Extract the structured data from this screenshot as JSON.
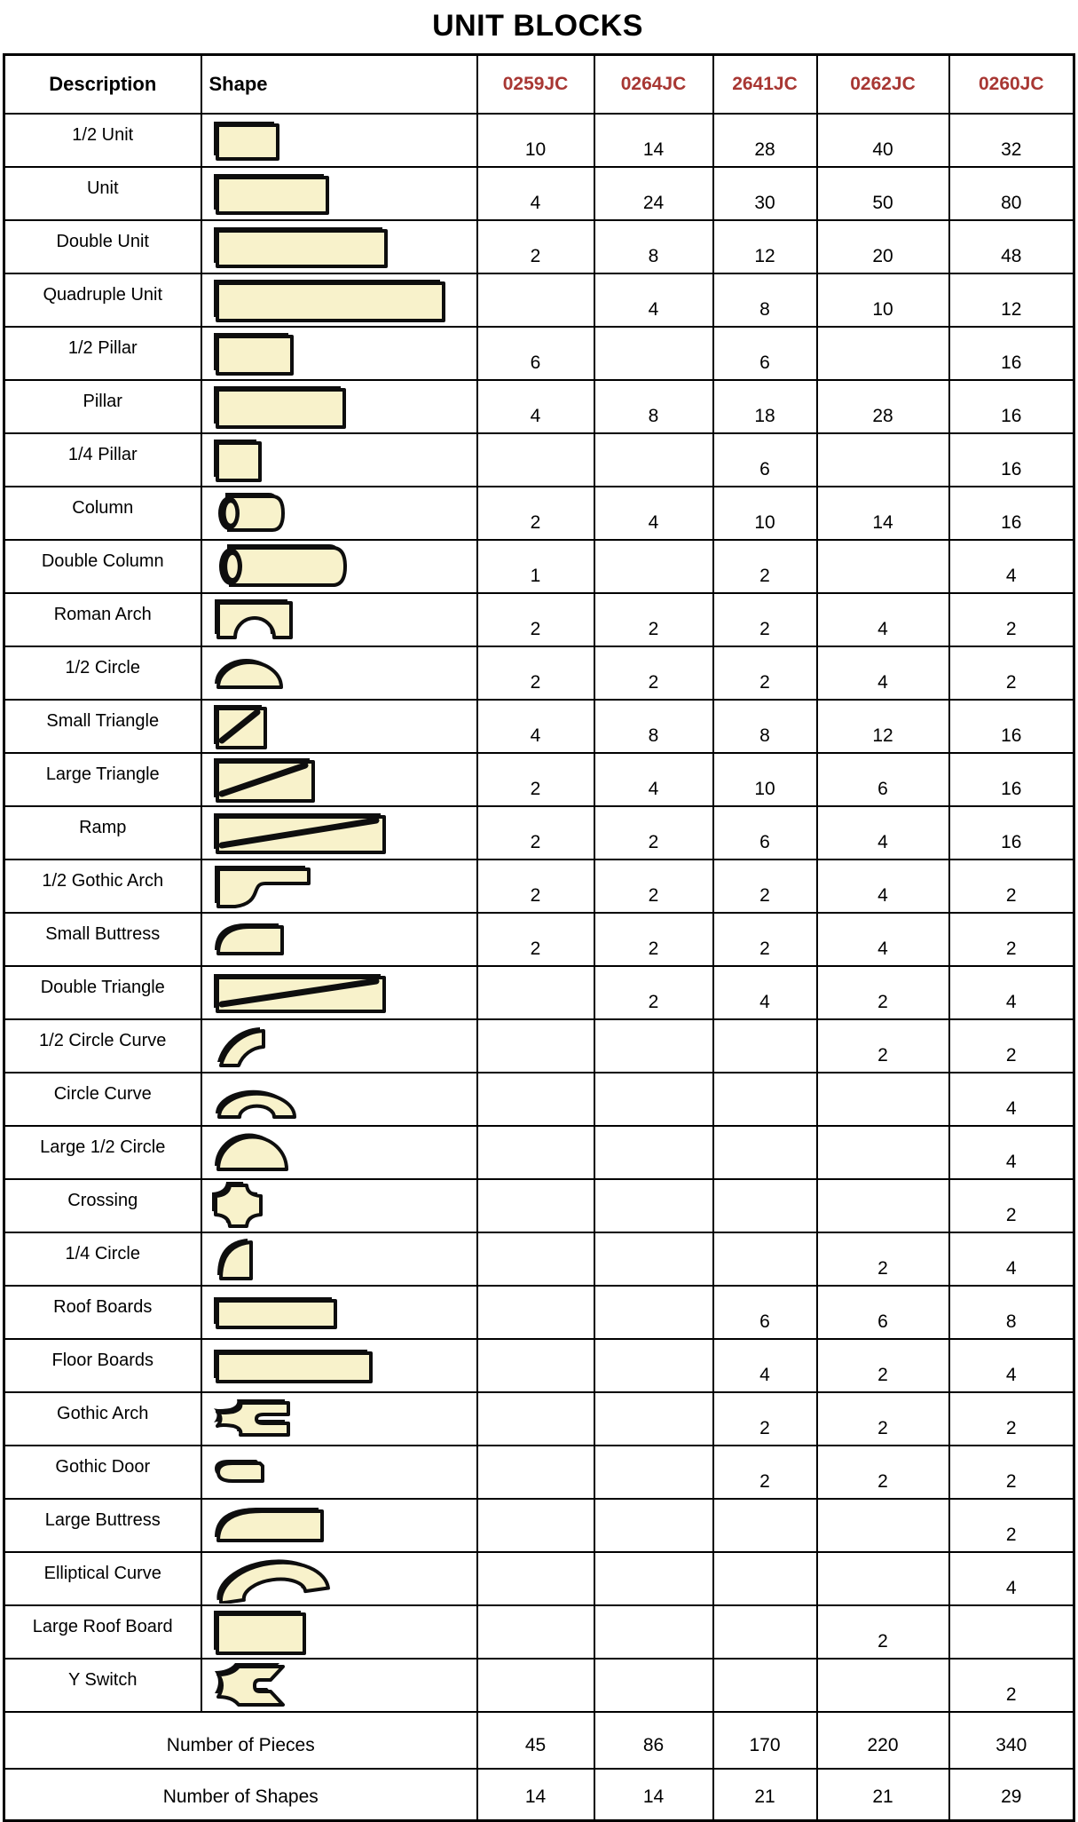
{
  "title": "UNIT BLOCKS",
  "colors": {
    "code_header_red": "#A83733",
    "block_cream": "#F8F2CB",
    "outline_black": "#0e0e0e"
  },
  "table": {
    "headers": [
      "Description",
      "Shape",
      "0259JC",
      "0264JC",
      "2641JC",
      "0262JC",
      "0260JC"
    ],
    "rows": [
      {
        "description": "1/2 Unit",
        "shape": "half-unit",
        "values": [
          "10",
          "14",
          "28",
          "40",
          "32"
        ]
      },
      {
        "description": "Unit",
        "shape": "unit",
        "values": [
          "4",
          "24",
          "30",
          "50",
          "80"
        ]
      },
      {
        "description": "Double Unit",
        "shape": "double-unit",
        "values": [
          "2",
          "8",
          "12",
          "20",
          "48"
        ]
      },
      {
        "description": "Quadruple Unit",
        "shape": "quadruple-unit",
        "values": [
          "",
          "4",
          "8",
          "10",
          "12"
        ]
      },
      {
        "description": "1/2 Pillar",
        "shape": "half-pillar",
        "values": [
          "6",
          "",
          "6",
          "",
          "16"
        ]
      },
      {
        "description": "Pillar",
        "shape": "pillar",
        "values": [
          "4",
          "8",
          "18",
          "28",
          "16"
        ]
      },
      {
        "description": "1/4 Pillar",
        "shape": "quarter-pillar",
        "values": [
          "",
          "",
          "6",
          "",
          "16"
        ]
      },
      {
        "description": "Column",
        "shape": "column",
        "values": [
          "2",
          "4",
          "10",
          "14",
          "16"
        ]
      },
      {
        "description": "Double Column",
        "shape": "double-column",
        "values": [
          "1",
          "",
          "2",
          "",
          "4"
        ]
      },
      {
        "description": "Roman Arch",
        "shape": "roman-arch",
        "values": [
          "2",
          "2",
          "2",
          "4",
          "2"
        ]
      },
      {
        "description": "1/2 Circle",
        "shape": "half-circle",
        "values": [
          "2",
          "2",
          "2",
          "4",
          "2"
        ]
      },
      {
        "description": "Small Triangle",
        "shape": "small-triangle",
        "values": [
          "4",
          "8",
          "8",
          "12",
          "16"
        ]
      },
      {
        "description": "Large Triangle",
        "shape": "large-triangle",
        "values": [
          "2",
          "4",
          "10",
          "6",
          "16"
        ]
      },
      {
        "description": "Ramp",
        "shape": "ramp",
        "values": [
          "2",
          "2",
          "6",
          "4",
          "16"
        ]
      },
      {
        "description": "1/2 Gothic Arch",
        "shape": "half-gothic-arch",
        "values": [
          "2",
          "2",
          "2",
          "4",
          "2"
        ]
      },
      {
        "description": "Small Buttress",
        "shape": "small-buttress",
        "values": [
          "2",
          "2",
          "2",
          "4",
          "2"
        ]
      },
      {
        "description": "Double Triangle",
        "shape": "double-triangle",
        "values": [
          "",
          "2",
          "4",
          "2",
          "4"
        ]
      },
      {
        "description": "1/2 Circle Curve",
        "shape": "half-circle-curve",
        "values": [
          "",
          "",
          "",
          "2",
          "2"
        ]
      },
      {
        "description": "Circle Curve",
        "shape": "circle-curve",
        "values": [
          "",
          "",
          "",
          "",
          "4"
        ]
      },
      {
        "description": "Large 1/2 Circle",
        "shape": "large-half-circle",
        "values": [
          "",
          "",
          "",
          "",
          "4"
        ]
      },
      {
        "description": "Crossing",
        "shape": "crossing",
        "values": [
          "",
          "",
          "",
          "",
          "2"
        ]
      },
      {
        "description": "1/4 Circle",
        "shape": "quarter-circle",
        "values": [
          "",
          "",
          "",
          "2",
          "4"
        ]
      },
      {
        "description": "Roof Boards",
        "shape": "roof-boards",
        "values": [
          "",
          "",
          "6",
          "6",
          "8"
        ]
      },
      {
        "description": "Floor Boards",
        "shape": "floor-boards",
        "values": [
          "",
          "",
          "4",
          "2",
          "4"
        ]
      },
      {
        "description": "Gothic Arch",
        "shape": "gothic-arch",
        "values": [
          "",
          "",
          "2",
          "2",
          "2"
        ]
      },
      {
        "description": "Gothic Door",
        "shape": "gothic-door",
        "values": [
          "",
          "",
          "2",
          "2",
          "2"
        ]
      },
      {
        "description": "Large Buttress",
        "shape": "large-buttress",
        "values": [
          "",
          "",
          "",
          "",
          "2"
        ]
      },
      {
        "description": "Elliptical Curve",
        "shape": "elliptical-curve",
        "values": [
          "",
          "",
          "",
          "",
          "4"
        ]
      },
      {
        "description": "Large Roof Board",
        "shape": "large-roof-board",
        "values": [
          "",
          "",
          "",
          "2",
          ""
        ]
      },
      {
        "description": "Y Switch",
        "shape": "y-switch",
        "values": [
          "",
          "",
          "",
          "",
          "2"
        ]
      }
    ],
    "summary_rows": [
      {
        "label": "Number of Pieces",
        "values": [
          "45",
          "86",
          "170",
          "220",
          "340"
        ]
      },
      {
        "label": "Number of Shapes",
        "values": [
          "14",
          "14",
          "21",
          "21",
          "29"
        ]
      }
    ]
  }
}
